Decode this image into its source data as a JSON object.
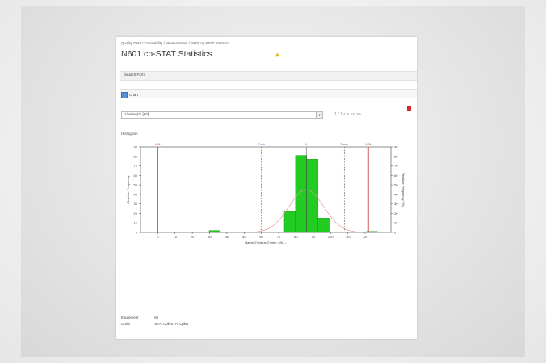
{
  "breadcrumb": "Quality Data / Traceability / Measurement / N601 cp-STAT Statistics",
  "page_title": "N601 cp-STAT Statistics",
  "search_form": {
    "label": "Search Form"
  },
  "chart_panel": {
    "label": "Chart"
  },
  "selector": {
    "value": "1/Name(2) [60]"
  },
  "nav": {
    "text": "1 / 1  < >   <<  >>"
  },
  "histogram_label": "Histogram",
  "footer": {
    "rows": [
      {
        "label": "Equipment",
        "value": "60"
      },
      {
        "label": "Order",
        "value": "STATCpk/STATCpkD"
      }
    ]
  },
  "colors": {
    "bar": "#22cc22",
    "bar_edge": "#118811",
    "limit": "#cc3333",
    "curve": "#e89898",
    "tol": "#5555aa"
  },
  "chart_data": {
    "type": "bar",
    "title": "",
    "xlabel": "Name(2)/Value(2) min, Mil  →",
    "ylabel_left": "Absolute Frequency",
    "ylabel_right": "Relative Frequency (%)",
    "xlim": [
      -10,
      135
    ],
    "ylim": [
      0,
      90
    ],
    "x_ticks": [
      0,
      10,
      20,
      30,
      40,
      50,
      60,
      70,
      80,
      90,
      100,
      110,
      120
    ],
    "y_ticks": [
      0,
      10,
      20,
      30,
      40,
      50,
      60,
      70,
      80,
      90
    ],
    "bin_width": 6.5,
    "bins": [
      {
        "x": 33,
        "count": 2
      },
      {
        "x": 76.5,
        "count": 22
      },
      {
        "x": 83,
        "count": 81
      },
      {
        "x": 89.5,
        "count": 77
      },
      {
        "x": 96,
        "count": 15
      },
      {
        "x": 124,
        "count": 1
      }
    ],
    "lines": [
      {
        "name": "LSL",
        "x": 0,
        "kind": "limit"
      },
      {
        "name": "USL",
        "x": 122,
        "kind": "limit"
      },
      {
        "name": "Tmin",
        "x": 60,
        "kind": "tol"
      },
      {
        "name": "Tmax",
        "x": 108,
        "kind": "tol"
      },
      {
        "name": "x̄",
        "x": 86,
        "kind": "mean"
      }
    ],
    "curve": {
      "mean": 86,
      "sd": 10,
      "peak": 45
    },
    "grid": false
  }
}
